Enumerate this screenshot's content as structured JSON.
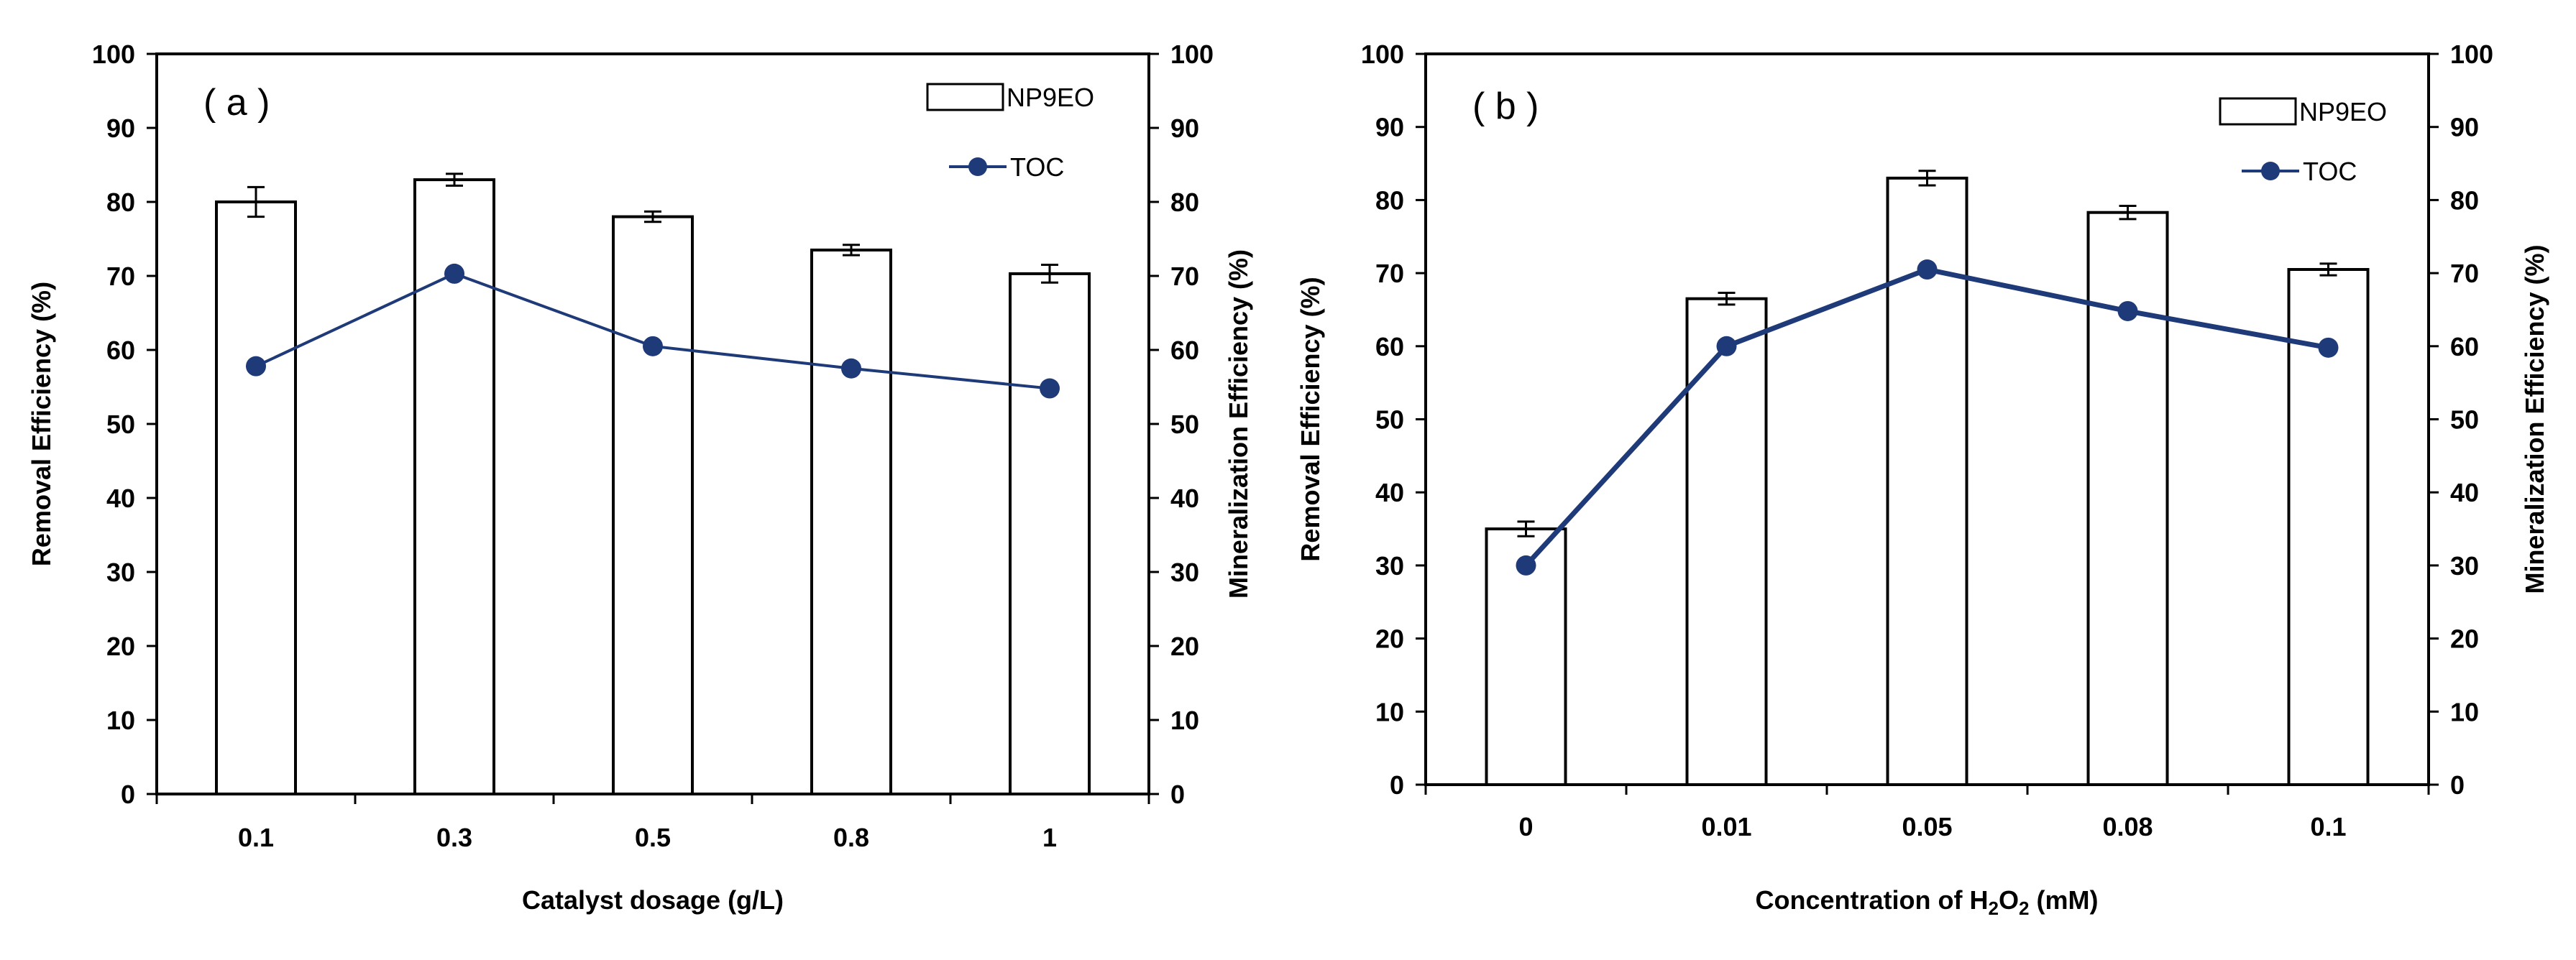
{
  "colors": {
    "line": "#1f3a78",
    "bar_fill": "#ffffff",
    "bar_stroke": "#000000"
  },
  "chart_data": [
    {
      "type": "bar",
      "panel_label": "( a )",
      "categories": [
        "0.1",
        "0.3",
        "0.5",
        "0.8",
        "1"
      ],
      "xlabel": "Catalyst dosage (g/L)",
      "ylabel": "Removal Efficiency (%)",
      "y2label": "Mineralization Efficiency (%)",
      "ylim": [
        0,
        100
      ],
      "y2lim": [
        0,
        100
      ],
      "yticks": [
        "0",
        "10",
        "20",
        "30",
        "40",
        "50",
        "60",
        "70",
        "80",
        "90",
        "100"
      ],
      "series": [
        {
          "name": "NP9EO",
          "kind": "bar",
          "axis": "left",
          "values": [
            80,
            83,
            78,
            73.5,
            70.3
          ],
          "errors": [
            2,
            0.8,
            0.7,
            0.7,
            1.2
          ]
        },
        {
          "name": "TOC",
          "kind": "line",
          "axis": "right",
          "values": [
            57.8,
            70.3,
            60.5,
            57.5,
            54.8
          ]
        }
      ],
      "legend": [
        "NP9EO",
        "TOC"
      ]
    },
    {
      "type": "bar",
      "panel_label": "( b )",
      "categories": [
        "0",
        "0.01",
        "0.05",
        "0.08",
        "0.1"
      ],
      "xlabel_prefix": "Concentration of H",
      "xlabel_sub1": "2",
      "xlabel_mid": "O",
      "xlabel_sub2": "2",
      "xlabel_suffix": " (mM)",
      "ylabel": "Removal Efficiency (%)",
      "y2label": "Mineralization Efficiency (%)",
      "ylim": [
        0,
        100
      ],
      "y2lim": [
        0,
        100
      ],
      "yticks": [
        "0",
        "10",
        "20",
        "30",
        "40",
        "50",
        "60",
        "70",
        "80",
        "90",
        "100"
      ],
      "series": [
        {
          "name": "NP9EO",
          "kind": "bar",
          "axis": "left",
          "values": [
            35,
            66.5,
            83,
            78.3,
            70.5
          ],
          "errors": [
            1,
            0.8,
            1,
            0.9,
            0.8
          ]
        },
        {
          "name": "TOC",
          "kind": "line",
          "axis": "right",
          "values": [
            30,
            60,
            70.5,
            64.8,
            59.8
          ]
        }
      ],
      "legend": [
        "NP9EO",
        "TOC"
      ]
    }
  ]
}
